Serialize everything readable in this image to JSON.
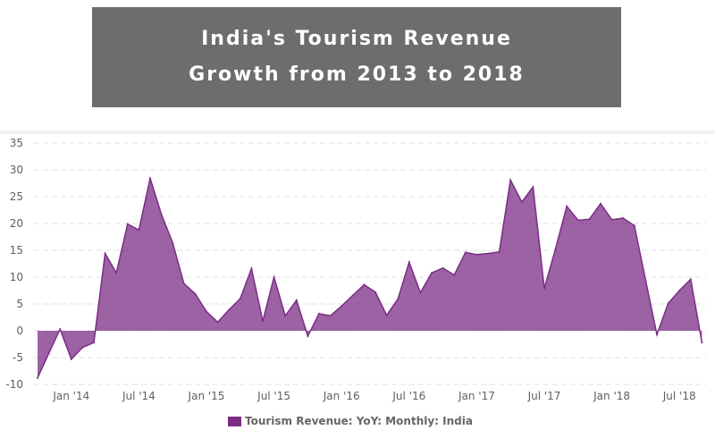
{
  "chart_data": {
    "type": "area",
    "title": "India's Tourism Revenue Growth from 2013 to 2018",
    "xlabel": "",
    "ylabel": "",
    "ylim": [
      -10,
      35
    ],
    "yticks": [
      35,
      30,
      25,
      20,
      15,
      10,
      5,
      0,
      -5,
      -10
    ],
    "xtick_labels": [
      "Jan '14",
      "Jul '14",
      "Jan '15",
      "Jul '15",
      "Jan '16",
      "Jul '16",
      "Jan '17",
      "Jul '17",
      "Jan '18",
      "Jul '18"
    ],
    "grid": true,
    "legend_position": "bottom",
    "color": "#7b2d86",
    "series": [
      {
        "name": "Tourism Revenue: YoY: Monthly: India",
        "x": [
          "2013-10",
          "2013-11",
          "2013-12",
          "2014-01",
          "2014-02",
          "2014-03",
          "2014-04",
          "2014-05",
          "2014-06",
          "2014-07",
          "2014-08",
          "2014-09",
          "2014-10",
          "2014-11",
          "2014-12",
          "2015-01",
          "2015-02",
          "2015-03",
          "2015-04",
          "2015-05",
          "2015-06",
          "2015-07",
          "2015-08",
          "2015-09",
          "2015-10",
          "2015-11",
          "2015-12",
          "2016-01",
          "2016-02",
          "2016-03",
          "2016-04",
          "2016-05",
          "2016-06",
          "2016-07",
          "2016-08",
          "2016-09",
          "2016-10",
          "2016-11",
          "2016-12",
          "2017-01",
          "2017-02",
          "2017-03",
          "2017-04",
          "2017-05",
          "2017-06",
          "2017-07",
          "2017-08",
          "2017-09",
          "2017-10",
          "2017-11",
          "2017-12",
          "2018-01",
          "2018-02",
          "2018-03",
          "2018-04",
          "2018-05",
          "2018-06",
          "2018-07",
          "2018-08",
          "2018-09"
        ],
        "values": [
          -8.8,
          -4.2,
          0.3,
          -5.3,
          -3.1,
          -2.2,
          14.4,
          10.8,
          19.9,
          18.8,
          28.4,
          21.7,
          16.4,
          8.8,
          6.9,
          3.6,
          1.6,
          3.9,
          6.0,
          11.6,
          1.8,
          10.0,
          2.8,
          5.7,
          -1.0,
          3.2,
          2.8,
          4.6,
          6.6,
          8.6,
          7.2,
          2.9,
          5.9,
          12.8,
          7.1,
          10.8,
          11.7,
          10.4,
          14.6,
          14.2,
          14.4,
          14.7,
          28.1,
          24.0,
          26.8,
          7.9,
          15.3,
          23.2,
          20.6,
          20.8,
          23.7,
          20.7,
          21.0,
          19.6,
          9.4,
          -0.7,
          5.1,
          7.5,
          9.6,
          -2.2
        ]
      }
    ]
  }
}
